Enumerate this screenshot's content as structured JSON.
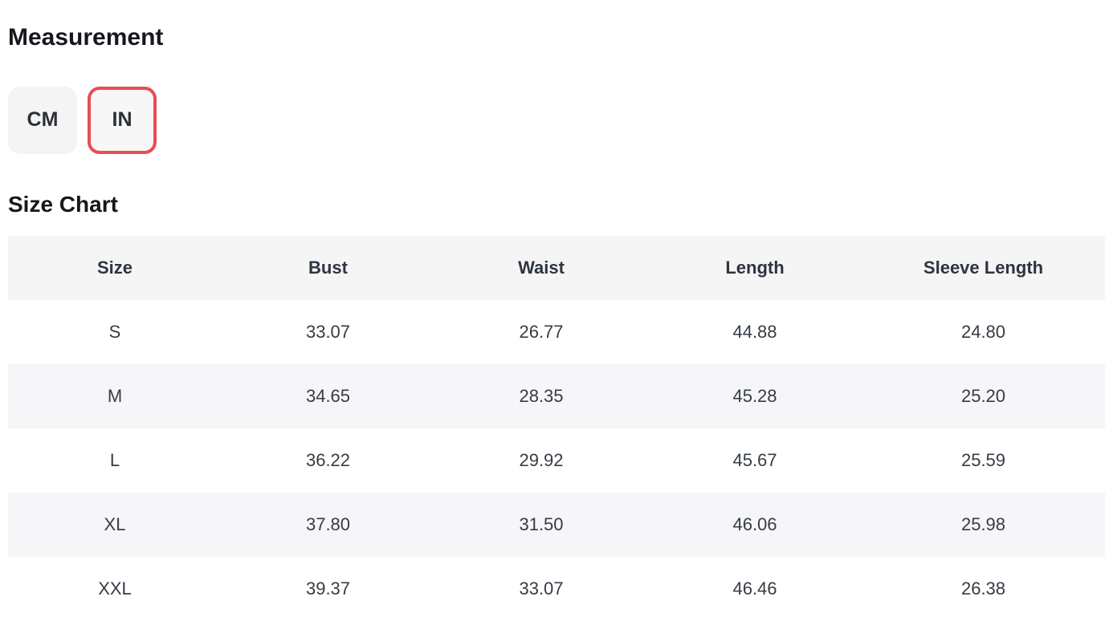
{
  "page": {
    "measurement_title": "Measurement",
    "size_chart_title": "Size Chart"
  },
  "unit_toggle": {
    "options": [
      {
        "label": "CM",
        "selected": false
      },
      {
        "label": "IN",
        "selected": true
      }
    ]
  },
  "size_table": {
    "columns": [
      "Size",
      "Bust",
      "Waist",
      "Length",
      "Sleeve Length"
    ],
    "rows": [
      {
        "size": "S",
        "values": [
          "33.07",
          "26.77",
          "44.88",
          "24.80"
        ]
      },
      {
        "size": "M",
        "values": [
          "34.65",
          "28.35",
          "45.28",
          "25.20"
        ]
      },
      {
        "size": "L",
        "values": [
          "36.22",
          "29.92",
          "45.67",
          "25.59"
        ]
      },
      {
        "size": "XL",
        "values": [
          "37.80",
          "31.50",
          "46.06",
          "25.98"
        ]
      },
      {
        "size": "XXL",
        "values": [
          "39.37",
          "33.07",
          "46.46",
          "26.38"
        ]
      }
    ]
  },
  "colors": {
    "accent_red": "#e94d50",
    "button_bg": "#f4f4f5",
    "table_header_bg": "#f5f5f6",
    "table_stripe_bg": "#f6f6f8",
    "heading_text": "#15181d",
    "cell_text": "#363c45"
  }
}
